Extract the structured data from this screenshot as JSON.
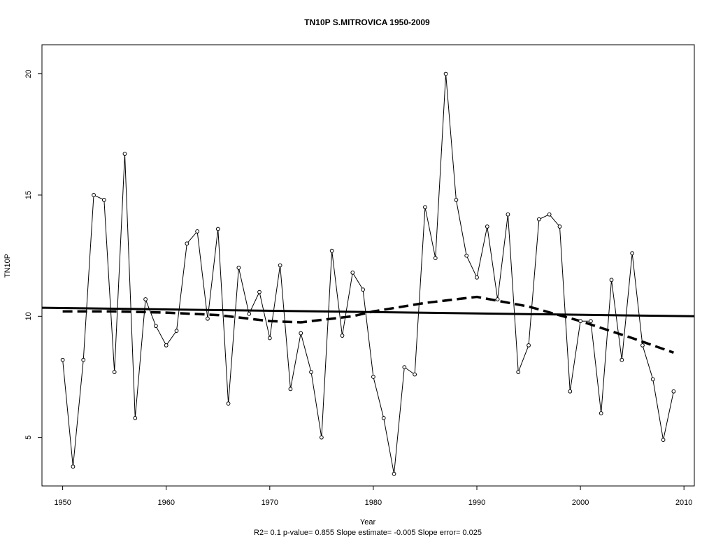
{
  "chart_data": {
    "type": "line",
    "title": "TN10P   S.MITROVICA 1950-2009",
    "xlabel": "Year",
    "ylabel": "TN10P",
    "footnote": "R2= 0.1  p-value= 0.855  Slope estimate= -0.005  Slope error= 0.025",
    "xlim": [
      1948,
      2011
    ],
    "ylim": [
      3,
      21.2
    ],
    "xticks": [
      1950,
      1960,
      1970,
      1980,
      1990,
      2000,
      2010
    ],
    "yticks": [
      5,
      10,
      15,
      20
    ],
    "grid": false,
    "legend": "none",
    "series": [
      {
        "style": "line-with-open-circles",
        "color": "#000000",
        "x": [
          1950,
          1951,
          1952,
          1953,
          1954,
          1955,
          1956,
          1957,
          1958,
          1959,
          1960,
          1961,
          1962,
          1963,
          1964,
          1965,
          1966,
          1967,
          1968,
          1969,
          1970,
          1971,
          1972,
          1973,
          1974,
          1975,
          1976,
          1977,
          1978,
          1979,
          1980,
          1981,
          1982,
          1983,
          1984,
          1985,
          1986,
          1987,
          1988,
          1989,
          1990,
          1991,
          1992,
          1993,
          1994,
          1995,
          1996,
          1997,
          1998,
          1999,
          2000,
          2001,
          2002,
          2003,
          2004,
          2005,
          2006,
          2007,
          2008,
          2009
        ],
        "y": [
          8.2,
          3.8,
          8.2,
          15.0,
          14.8,
          7.7,
          16.7,
          5.8,
          10.7,
          9.6,
          8.8,
          9.4,
          13.0,
          13.5,
          9.9,
          13.6,
          6.4,
          12.0,
          10.1,
          11.0,
          9.1,
          12.1,
          7.0,
          9.3,
          7.7,
          5.0,
          12.7,
          9.2,
          11.8,
          11.1,
          7.5,
          5.8,
          3.5,
          7.9,
          7.6,
          14.5,
          12.4,
          20.0,
          14.8,
          12.5,
          11.6,
          13.7,
          10.7,
          14.2,
          7.7,
          8.8,
          14.0,
          14.2,
          13.7,
          6.9,
          9.8,
          9.8,
          6.0,
          11.5,
          8.2,
          12.6,
          8.8,
          7.4,
          4.9,
          6.9
        ]
      },
      {
        "style": "solid-thick",
        "color": "#000000",
        "x": [
          1948,
          2011
        ],
        "y": [
          10.35,
          10.0
        ]
      },
      {
        "style": "dashed-thick",
        "color": "#000000",
        "x": [
          1950,
          1955,
          1960,
          1965,
          1970,
          1973,
          1975,
          1978,
          1980,
          1985,
          1990,
          1995,
          2000,
          2005,
          2009
        ],
        "y": [
          10.2,
          10.2,
          10.15,
          10.05,
          9.8,
          9.75,
          9.85,
          10.0,
          10.2,
          10.55,
          10.8,
          10.4,
          9.8,
          9.1,
          8.5
        ]
      }
    ]
  }
}
